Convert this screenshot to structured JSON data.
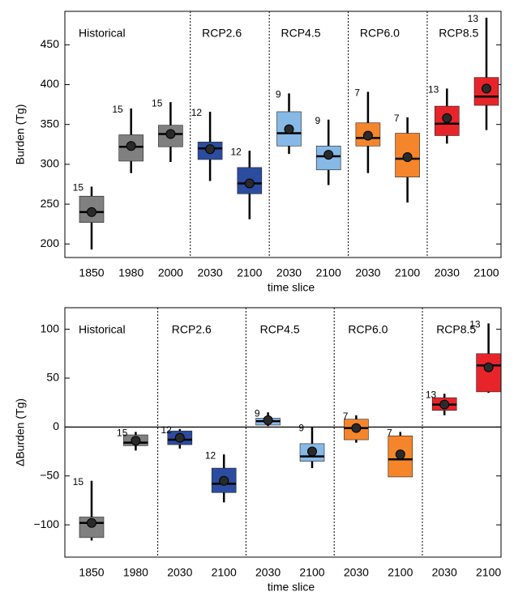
{
  "chart_data": [
    {
      "type": "box",
      "ylabel": "Burden (Tg)",
      "xlabel": "time slice",
      "ylim": [
        183,
        492
      ],
      "yticks": [
        200,
        250,
        300,
        350,
        400,
        450
      ],
      "series": [
        {
          "name": "Historical",
          "color": "#808080",
          "categories": [
            "1850",
            "1980",
            "2000"
          ],
          "low": [
            193,
            289,
            303
          ],
          "q1": [
            227,
            304,
            322
          ],
          "median": [
            240,
            322,
            338
          ],
          "q3": [
            260,
            337,
            349
          ],
          "high": [
            272,
            370,
            378
          ],
          "mean": [
            240,
            323,
            338
          ],
          "n": [
            15,
            15,
            15
          ]
        },
        {
          "name": "RCP2.6",
          "color": "#2b4c9f",
          "categories": [
            "2030",
            "2100"
          ],
          "low": [
            279,
            231
          ],
          "q1": [
            306,
            263
          ],
          "median": [
            320,
            276
          ],
          "q3": [
            328,
            296
          ],
          "high": [
            366,
            317
          ],
          "mean": [
            319,
            276
          ],
          "n": [
            12,
            12
          ]
        },
        {
          "name": "RCP4.5",
          "color": "#86b9e6",
          "categories": [
            "2030",
            "2100"
          ],
          "low": [
            313,
            274
          ],
          "q1": [
            323,
            293
          ],
          "median": [
            339,
            310
          ],
          "q3": [
            366,
            323
          ],
          "high": [
            389,
            356
          ],
          "mean": [
            344,
            312
          ],
          "n": [
            9,
            9
          ]
        },
        {
          "name": "RCP6.0",
          "color": "#f5852b",
          "categories": [
            "2030",
            "2100"
          ],
          "low": [
            289,
            252
          ],
          "q1": [
            323,
            284
          ],
          "median": [
            333,
            307
          ],
          "q3": [
            352,
            339
          ],
          "high": [
            391,
            359
          ],
          "mean": [
            336,
            309
          ],
          "n": [
            7,
            7
          ]
        },
        {
          "name": "RCP8.5",
          "color": "#e8242b",
          "categories": [
            "2030",
            "2100"
          ],
          "low": [
            326,
            343
          ],
          "q1": [
            336,
            374
          ],
          "median": [
            351,
            385
          ],
          "q3": [
            373,
            409
          ],
          "high": [
            395,
            484
          ],
          "mean": [
            358,
            395
          ],
          "n": [
            13,
            13
          ]
        }
      ]
    },
    {
      "type": "box",
      "ylabel": "ΔBurden (Tg)",
      "xlabel": "time slice",
      "ylim": [
        -133,
        122
      ],
      "yticks": [
        {
          "value": -100,
          "label": "−100"
        },
        {
          "value": -50,
          "label": "−50"
        },
        0,
        50,
        100
      ],
      "reference_line": 0,
      "series": [
        {
          "name": "Historical",
          "color": "#808080",
          "categories": [
            "1850",
            "1980"
          ],
          "low": [
            -116,
            -24
          ],
          "q1": [
            -113,
            -19
          ],
          "median": [
            -98,
            -16
          ],
          "q3": [
            -92,
            -8
          ],
          "high": [
            -55,
            -5
          ],
          "mean": [
            -98,
            -14
          ],
          "n": [
            15,
            15
          ]
        },
        {
          "name": "RCP2.6",
          "color": "#2b4c9f",
          "categories": [
            "2030",
            "2100"
          ],
          "low": [
            -22,
            -77
          ],
          "q1": [
            -18,
            -67
          ],
          "median": [
            -13,
            -58
          ],
          "q3": [
            -4,
            -42
          ],
          "high": [
            -2,
            -28
          ],
          "mean": [
            -11,
            -55
          ],
          "n": [
            12,
            12
          ]
        },
        {
          "name": "RCP4.5",
          "color": "#86b9e6",
          "categories": [
            "2030",
            "2100"
          ],
          "low": [
            1,
            -42
          ],
          "q1": [
            2,
            -35
          ],
          "median": [
            6,
            -30
          ],
          "q3": [
            9,
            -17
          ],
          "high": [
            15,
            0
          ],
          "mean": [
            7,
            -25
          ],
          "n": [
            9,
            9
          ]
        },
        {
          "name": "RCP6.0",
          "color": "#f5852b",
          "categories": [
            "2030",
            "2100"
          ],
          "low": [
            -16,
            -51
          ],
          "q1": [
            -13,
            -51
          ],
          "median": [
            -1,
            -33
          ],
          "q3": [
            8,
            -9
          ],
          "high": [
            12,
            -5
          ],
          "mean": [
            -1,
            -28
          ],
          "n": [
            7,
            7
          ]
        },
        {
          "name": "RCP8.5",
          "color": "#e8242b",
          "categories": [
            "2030",
            "2100"
          ],
          "low": [
            12,
            35
          ],
          "q1": [
            17,
            36
          ],
          "median": [
            23,
            63
          ],
          "q3": [
            30,
            75
          ],
          "high": [
            34,
            106
          ],
          "mean": [
            23,
            61
          ],
          "n": [
            13,
            13
          ]
        }
      ]
    }
  ]
}
